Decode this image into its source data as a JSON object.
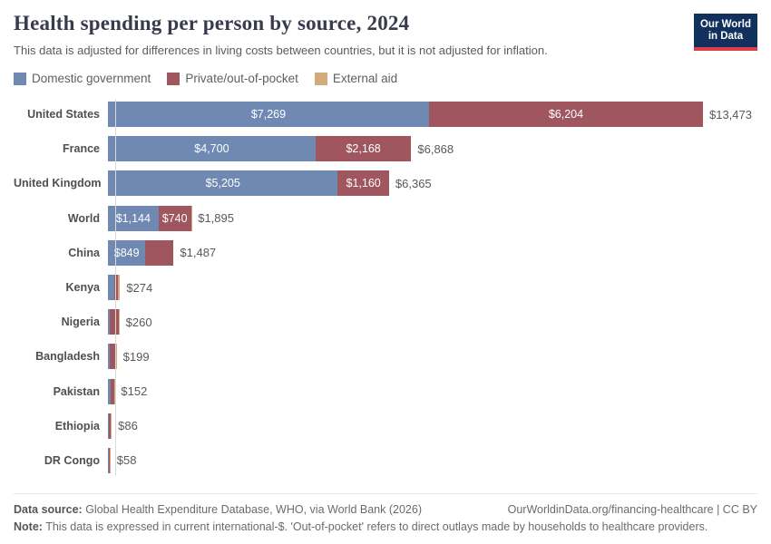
{
  "header": {
    "title": "Health spending per person by source, 2024",
    "subtitle": "This data is adjusted for differences in living costs between countries, but it is not adjusted for inflation.",
    "logo_line1": "Our World",
    "logo_line2": "in Data"
  },
  "colors": {
    "domestic_government": "#7089b3",
    "private_out_of_pocket": "#a0565e",
    "external_aid": "#d2ab7c",
    "logo_navy": "#12305c",
    "logo_red": "#dc3c4d"
  },
  "legend": {
    "items": [
      {
        "label": "Domestic government",
        "color": "#7089b3"
      },
      {
        "label": "Private/out-of-pocket",
        "color": "#a0565e"
      },
      {
        "label": "External aid",
        "color": "#d2ab7c"
      }
    ]
  },
  "chart_data": {
    "type": "bar",
    "orientation": "horizontal",
    "stacked": true,
    "unit": "current international-$",
    "xlim": [
      0,
      13473
    ],
    "legend_position": "top",
    "grid": false,
    "series_names": [
      "Domestic government",
      "Private/out-of-pocket",
      "External aid"
    ],
    "series_colors": [
      "#7089b3",
      "#a0565e",
      "#d2ab7c"
    ],
    "rows": [
      {
        "country": "United States",
        "values": [
          7269,
          6204,
          0
        ],
        "segment_labels": [
          "$7,269",
          "$6,204",
          ""
        ],
        "total": 13473,
        "total_label": "$13,473"
      },
      {
        "country": "France",
        "values": [
          4700,
          2168,
          0
        ],
        "segment_labels": [
          "$4,700",
          "$2,168",
          ""
        ],
        "total": 6868,
        "total_label": "$6,868"
      },
      {
        "country": "United Kingdom",
        "values": [
          5205,
          1160,
          0
        ],
        "segment_labels": [
          "$5,205",
          "$1,160",
          ""
        ],
        "total": 6365,
        "total_label": "$6,365"
      },
      {
        "country": "World",
        "values": [
          1144,
          740,
          11
        ],
        "segment_labels": [
          "$1,144",
          "$740",
          ""
        ],
        "total": 1895,
        "total_label": "$1,895"
      },
      {
        "country": "China",
        "values": [
          849,
          638,
          0
        ],
        "segment_labels": [
          "$849",
          "",
          ""
        ],
        "total": 1487,
        "total_label": "$1,487"
      },
      {
        "country": "Kenya",
        "values": [
          148,
          79,
          47
        ],
        "segment_labels": [
          "",
          "",
          ""
        ],
        "total": 274,
        "total_label": "$274"
      },
      {
        "country": "Nigeria",
        "values": [
          40,
          200,
          20
        ],
        "segment_labels": [
          "",
          "",
          ""
        ],
        "total": 260,
        "total_label": "$260"
      },
      {
        "country": "Bangladesh",
        "values": [
          36,
          149,
          14
        ],
        "segment_labels": [
          "",
          "",
          ""
        ],
        "total": 199,
        "total_label": "$199"
      },
      {
        "country": "Pakistan",
        "values": [
          70,
          75,
          7
        ],
        "segment_labels": [
          "",
          "",
          ""
        ],
        "total": 152,
        "total_label": "$152"
      },
      {
        "country": "Ethiopia",
        "values": [
          22,
          35,
          29
        ],
        "segment_labels": [
          "",
          "",
          ""
        ],
        "total": 86,
        "total_label": "$86"
      },
      {
        "country": "DR Congo",
        "values": [
          12,
          30,
          16
        ],
        "segment_labels": [
          "",
          "",
          ""
        ],
        "total": 58,
        "total_label": "$58"
      }
    ]
  },
  "footer": {
    "datasource_label": "Data source:",
    "datasource_text": " Global Health Expenditure Database, WHO, via World Bank (2026)",
    "attribution": "OurWorldinData.org/financing-healthcare | CC BY",
    "note_label": "Note:",
    "note_text": " This data is expressed in current international-$. 'Out-of-pocket' refers to direct outlays made by households to healthcare providers."
  }
}
